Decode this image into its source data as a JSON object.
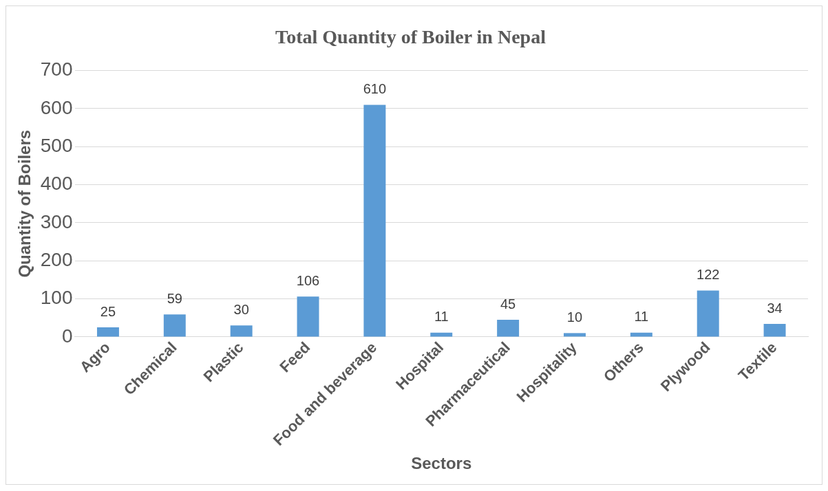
{
  "chart_data": {
    "type": "bar",
    "title": "Total Quantity of Boiler in Nepal",
    "xlabel": "Sectors",
    "ylabel": "Quantity of Boilers",
    "categories": [
      "Agro",
      "Chemical",
      "Plastic",
      "Feed",
      "Food and beverage",
      "Hospital",
      "Pharmaceutical",
      "Hospitality",
      "Others",
      "Plywood",
      "Textile"
    ],
    "values": [
      25,
      59,
      30,
      106,
      610,
      11,
      45,
      10,
      11,
      122,
      34
    ],
    "color": "#5b9bd5",
    "ylim": [
      0,
      700
    ],
    "yticks": [
      0,
      100,
      200,
      300,
      400,
      500,
      600,
      700
    ],
    "grid": "y",
    "data_labels": true,
    "legend": false
  }
}
